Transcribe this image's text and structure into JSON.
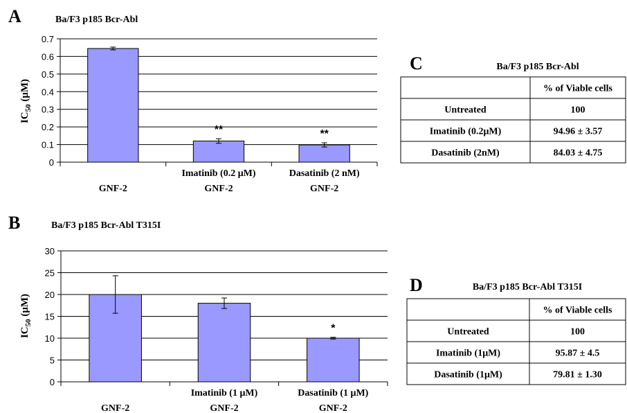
{
  "panels": {
    "A": {
      "label": "A",
      "chart_data": {
        "type": "bar",
        "title": "Ba/F3 p185 Bcr-Abl",
        "ylabel_main": "IC",
        "ylabel_sub": "50",
        "ylabel_unit": " (μM)",
        "ylim": [
          0,
          0.7
        ],
        "yticks": [
          "0",
          "0.1",
          "0.2",
          "0.3",
          "0.4",
          "0.5",
          "0.6",
          "0.7"
        ],
        "ytick_values": [
          0,
          0.1,
          0.2,
          0.3,
          0.4,
          0.5,
          0.6,
          0.7
        ],
        "grid": true,
        "categories": [
          {
            "line1": "",
            "line2": "GNF-2"
          },
          {
            "line1": "Imatinib (0.2 μM)",
            "line2": "GNF-2"
          },
          {
            "line1": "Dasatinib (2 nM)",
            "line2": "GNF-2"
          }
        ],
        "values": [
          0.645,
          0.12,
          0.098
        ],
        "errors": [
          0.008,
          0.013,
          0.012
        ],
        "annotations": [
          "",
          "**",
          "**"
        ],
        "bar_color": "#9999ff"
      }
    },
    "B": {
      "label": "B",
      "chart_data": {
        "type": "bar",
        "title": "Ba/F3 p185 Bcr-Abl T315I",
        "ylabel_main": "IC",
        "ylabel_sub": "50",
        "ylabel_unit": " (μM)",
        "ylim": [
          0,
          30
        ],
        "yticks": [
          "0",
          "5",
          "10",
          "15",
          "20",
          "25",
          "30"
        ],
        "ytick_values": [
          0,
          5,
          10,
          15,
          20,
          25,
          30
        ],
        "grid": true,
        "categories": [
          {
            "line1": "",
            "line2": "GNF-2"
          },
          {
            "line1": "Imatinib (1 μM)",
            "line2": "GNF-2"
          },
          {
            "line1": "Dasatinib (1 μM)",
            "line2": "GNF-2"
          }
        ],
        "values": [
          20,
          18,
          10
        ],
        "errors": [
          4.3,
          1.2,
          0.2
        ],
        "annotations": [
          "",
          "",
          "*"
        ],
        "bar_color": "#9999ff"
      }
    },
    "C": {
      "label": "C",
      "title": "Ba/F3 p185 Bcr-Abl",
      "header": [
        "",
        "% of Viable cells"
      ],
      "rows": [
        [
          "Untreated",
          "100"
        ],
        [
          "Imatinib (0.2μM)",
          "94.96 ± 3.57"
        ],
        [
          "Dasatinib (2nM)",
          "84.03  ± 4.75"
        ]
      ]
    },
    "D": {
      "label": "D",
      "title": "Ba/F3 p185 Bcr-Abl T315I",
      "header": [
        "",
        "% of Viable cells"
      ],
      "rows": [
        [
          "Untreated",
          "100"
        ],
        [
          "Imatinib (1μM)",
          "95.87 ± 4.5"
        ],
        [
          "Dasatinib (1μM)",
          "79.81 ± 1.30"
        ]
      ]
    }
  }
}
